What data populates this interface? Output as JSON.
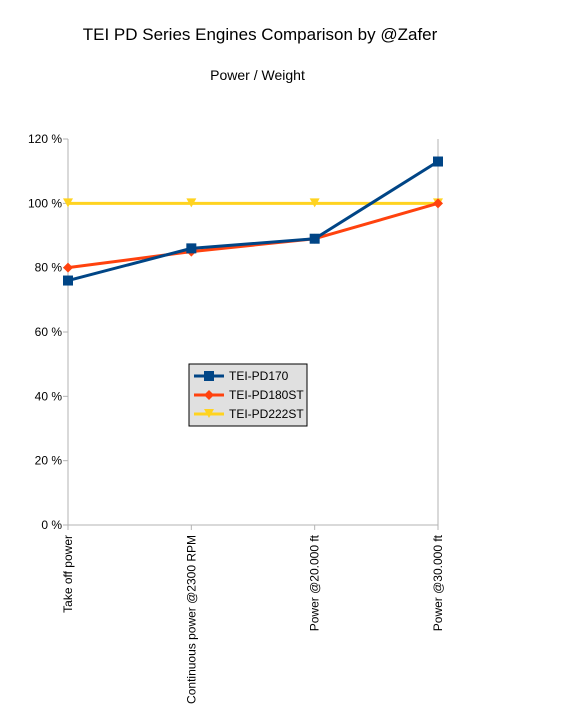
{
  "chart_data": {
    "type": "line",
    "title": "TEI PD Series Engines Comparison by @Zafer",
    "subtitle": "Power / Weight",
    "categories": [
      "Take off power",
      "Continuous power @2300 RPM",
      "Power @20.000 ft",
      "Power @30.000 ft"
    ],
    "series": [
      {
        "name": "TEI-PD170",
        "values": [
          76,
          86,
          89,
          113
        ],
        "color": "#004586",
        "marker": "square"
      },
      {
        "name": "TEI-PD180ST",
        "values": [
          80,
          85,
          89,
          100
        ],
        "color": "#ff420e",
        "marker": "diamond"
      },
      {
        "name": "TEI-PD222ST",
        "values": [
          100,
          100,
          100,
          100
        ],
        "color": "#ffd320",
        "marker": "triangle-down"
      }
    ],
    "ylim": [
      0,
      120
    ],
    "yticks": [
      "0 %",
      "20 %",
      "40 %",
      "60 %",
      "80 %",
      "100 %",
      "120 %"
    ],
    "grid": false,
    "legend": "center"
  }
}
